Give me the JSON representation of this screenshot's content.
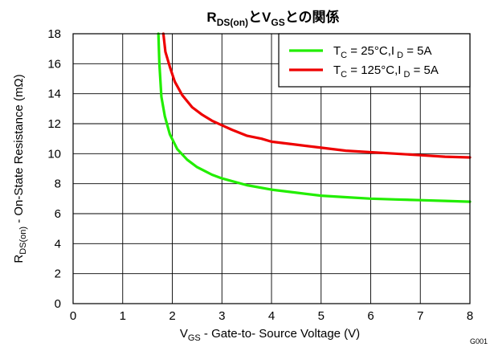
{
  "chart_data": {
    "type": "line",
    "title": {
      "parts": [
        {
          "text": "R",
          "sub": false
        },
        {
          "text": "DS(on)",
          "sub": true
        },
        {
          "text": "とV",
          "sub": false
        },
        {
          "text": "GS",
          "sub": true
        },
        {
          "text": "との関係",
          "sub": false
        }
      ]
    },
    "xlabel": {
      "parts": [
        {
          "text": "V",
          "sub": false
        },
        {
          "text": "GS",
          "sub": true
        },
        {
          "text": " - Gate-to- Source Voltage (V)",
          "sub": false
        }
      ]
    },
    "ylabel": {
      "parts": [
        {
          "text": "R",
          "sub": false
        },
        {
          "text": "DS(on)",
          "sub": true
        },
        {
          "text": " - On-State Resistance (mΩ)",
          "sub": false
        }
      ]
    },
    "xlim": [
      0,
      8
    ],
    "ylim": [
      0,
      18
    ],
    "xticks": [
      "0",
      "1",
      "2",
      "3",
      "4",
      "5",
      "6",
      "7",
      "8"
    ],
    "yticks": [
      "0",
      "2",
      "4",
      "6",
      "8",
      "10",
      "12",
      "14",
      "16",
      "18"
    ],
    "grid": true,
    "legend_position": "top-right",
    "figure_id": "G001",
    "series": [
      {
        "label_parts": [
          {
            "text": "T",
            "sub": false
          },
          {
            "text": "C",
            "sub": true
          },
          {
            "text": " = 25°C,I",
            "sub": false
          },
          {
            "text": " D",
            "sub": true
          },
          {
            "text": " = 5A",
            "sub": false
          }
        ],
        "color": "#22ee00",
        "x": [
          1.72,
          1.74,
          1.78,
          1.85,
          1.95,
          2.1,
          2.3,
          2.5,
          2.8,
          3.0,
          3.5,
          4.0,
          4.5,
          5.0,
          5.5,
          6.0,
          6.5,
          7.0,
          7.5,
          8.0
        ],
        "y": [
          18.0,
          16.0,
          13.8,
          12.5,
          11.3,
          10.3,
          9.6,
          9.1,
          8.6,
          8.35,
          7.9,
          7.6,
          7.4,
          7.2,
          7.1,
          7.0,
          6.95,
          6.9,
          6.85,
          6.8
        ]
      },
      {
        "label_parts": [
          {
            "text": "T",
            "sub": false
          },
          {
            "text": "C",
            "sub": true
          },
          {
            "text": " = 125°C,I",
            "sub": false
          },
          {
            "text": " D",
            "sub": true
          },
          {
            "text": " = 5A",
            "sub": false
          }
        ],
        "color": "#ee0000",
        "x": [
          1.82,
          1.86,
          1.95,
          2.05,
          2.2,
          2.4,
          2.6,
          2.8,
          3.0,
          3.2,
          3.5,
          3.8,
          4.0,
          4.5,
          5.0,
          5.5,
          6.0,
          6.5,
          7.0,
          7.5,
          8.0
        ],
        "y": [
          18.0,
          16.8,
          15.8,
          14.8,
          13.9,
          13.1,
          12.6,
          12.2,
          11.9,
          11.6,
          11.2,
          11.0,
          10.8,
          10.6,
          10.4,
          10.2,
          10.1,
          10.0,
          9.9,
          9.8,
          9.75
        ]
      }
    ]
  }
}
